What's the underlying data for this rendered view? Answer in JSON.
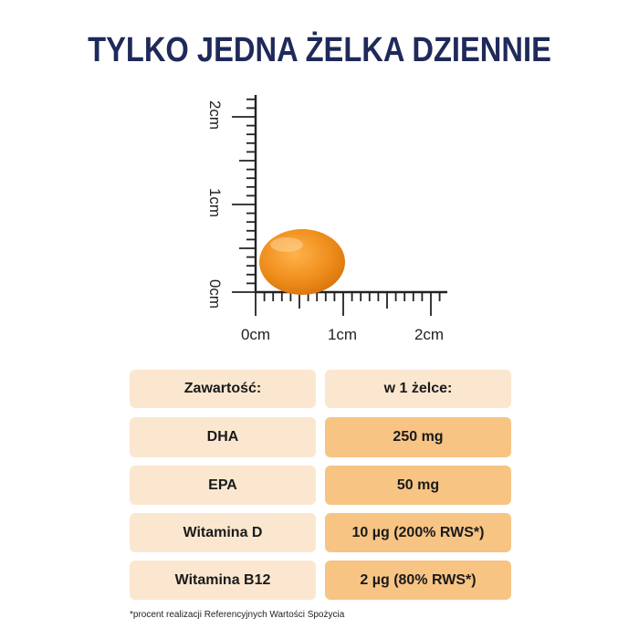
{
  "title": "TYLKO JEDNA ŻELKA DZIENNIE",
  "ruler": {
    "x_labels": [
      "0cm",
      "1cm",
      "2cm"
    ],
    "y_labels": [
      "0cm",
      "1cm",
      "2cm"
    ],
    "gummy_color": "#ef8f1c"
  },
  "table": {
    "headers": [
      "Zawartość:",
      "w 1 żelce:"
    ],
    "rows": [
      {
        "name": "DHA",
        "value": "250 mg"
      },
      {
        "name": "EPA",
        "value": "50 mg"
      },
      {
        "name": "Witamina D",
        "value": "10 µg (200% RWS*)"
      },
      {
        "name": "Witamina B12",
        "value": "2 µg (80% RWS*)"
      }
    ],
    "colors": {
      "light": "#fbe7cf",
      "dark": "#f7c484"
    }
  },
  "footnote": "*procent realizacji Referencyjnych Wartości Spożycia"
}
